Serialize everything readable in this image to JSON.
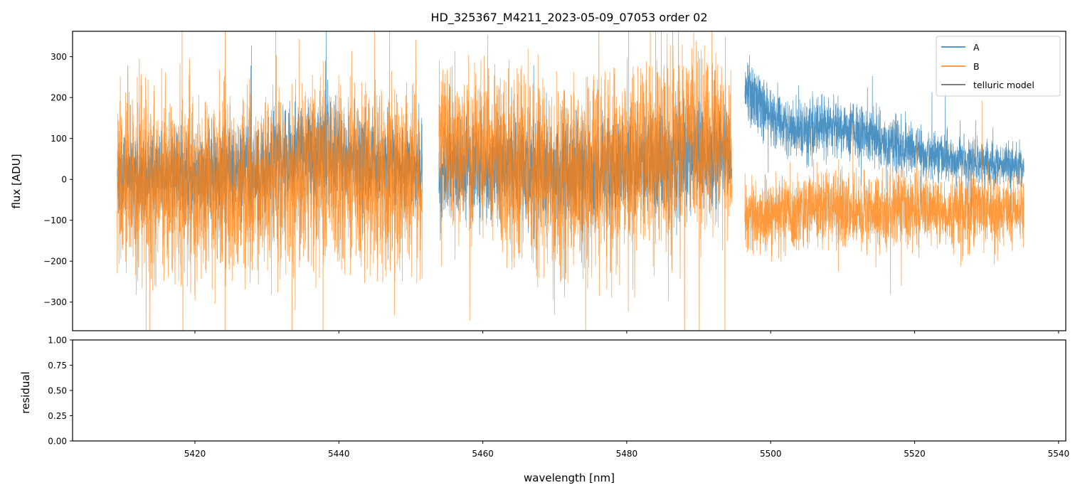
{
  "colors": {
    "A": "#1f77b4",
    "B": "#ff7f0e",
    "telluric": "#555555"
  },
  "chart_data": [
    {
      "type": "line",
      "title": "HD_325367_M4211_2023-05-09_07053  order 02",
      "xlabel": "",
      "ylabel": "flux [ADU]",
      "xlim": [
        5403,
        5541
      ],
      "ylim": [
        -370,
        362
      ],
      "yticks": [
        -300,
        -200,
        -100,
        0,
        100,
        200,
        300
      ],
      "ytick_labels": [
        "−300",
        "−200",
        "−100",
        "0",
        "100",
        "200",
        "300"
      ],
      "legend": {
        "placement": "top-right",
        "entries": [
          "A",
          "B",
          "telluric model"
        ]
      },
      "series": [
        {
          "name": "A",
          "color": "#1f77b4",
          "style": "noisy",
          "segments": [
            [
              5409.2,
              5451.6
            ],
            [
              5453.9,
              5494.6
            ],
            [
              5496.4,
              5535.2
            ]
          ],
          "x": [
            5409.2,
            5415,
            5420,
            5425,
            5430,
            5435,
            5440,
            5445,
            5451.6,
            5453.9,
            5458,
            5463,
            5468,
            5473,
            5478,
            5483,
            5488,
            5494.6,
            5496.4,
            5498,
            5500,
            5502,
            5505,
            5510,
            5515,
            5520,
            5525,
            5530,
            5535.2
          ],
          "y": [
            5,
            10,
            15,
            20,
            30,
            70,
            60,
            40,
            30,
            10,
            20,
            30,
            20,
            10,
            20,
            40,
            50,
            60,
            230,
            200,
            160,
            130,
            120,
            130,
            100,
            70,
            50,
            40,
            30
          ],
          "noise": [
            60,
            60,
            70,
            70,
            75,
            80,
            80,
            70,
            60,
            60,
            70,
            75,
            80,
            80,
            80,
            80,
            80,
            70,
            50,
            50,
            45,
            45,
            45,
            45,
            40,
            40,
            35,
            35,
            30
          ]
        },
        {
          "name": "B",
          "color": "#ff7f0e",
          "style": "noisy",
          "segments": [
            [
              5409.2,
              5451.6
            ],
            [
              5453.9,
              5494.6
            ],
            [
              5496.4,
              5535.2
            ]
          ],
          "x": [
            5409.2,
            5415,
            5420,
            5425,
            5430,
            5435,
            5440,
            5445,
            5451.6,
            5453.9,
            5458,
            5463,
            5468,
            5473,
            5478,
            5483,
            5488,
            5494.6,
            5496.4,
            5500,
            5505,
            5510,
            5515,
            5520,
            5525,
            5530,
            5535.2
          ],
          "y": [
            0,
            0,
            -20,
            -20,
            -30,
            10,
            20,
            10,
            0,
            100,
            80,
            40,
            10,
            0,
            20,
            60,
            80,
            80,
            -90,
            -90,
            -80,
            -70,
            -80,
            -70,
            -80,
            -70,
            -80
          ],
          "noise": [
            140,
            150,
            150,
            140,
            140,
            140,
            140,
            140,
            130,
            120,
            130,
            140,
            150,
            150,
            150,
            150,
            150,
            140,
            60,
            60,
            60,
            60,
            60,
            60,
            55,
            55,
            50
          ]
        },
        {
          "name": "telluric model",
          "color": "#555555",
          "style": "line",
          "x": [],
          "y": []
        }
      ]
    },
    {
      "type": "line",
      "title": "",
      "xlabel": "wavelength [nm]",
      "ylabel": "residual",
      "xlim": [
        5403,
        5541
      ],
      "ylim": [
        0,
        1
      ],
      "xticks": [
        5420,
        5440,
        5460,
        5480,
        5500,
        5520,
        5540
      ],
      "xtick_labels": [
        "5420",
        "5440",
        "5460",
        "5480",
        "5500",
        "5520",
        "5540"
      ],
      "yticks": [
        0,
        0.25,
        0.5,
        0.75,
        1.0
      ],
      "ytick_labels": [
        "0.00",
        "0.25",
        "0.50",
        "0.75",
        "1.00"
      ],
      "series": []
    }
  ]
}
